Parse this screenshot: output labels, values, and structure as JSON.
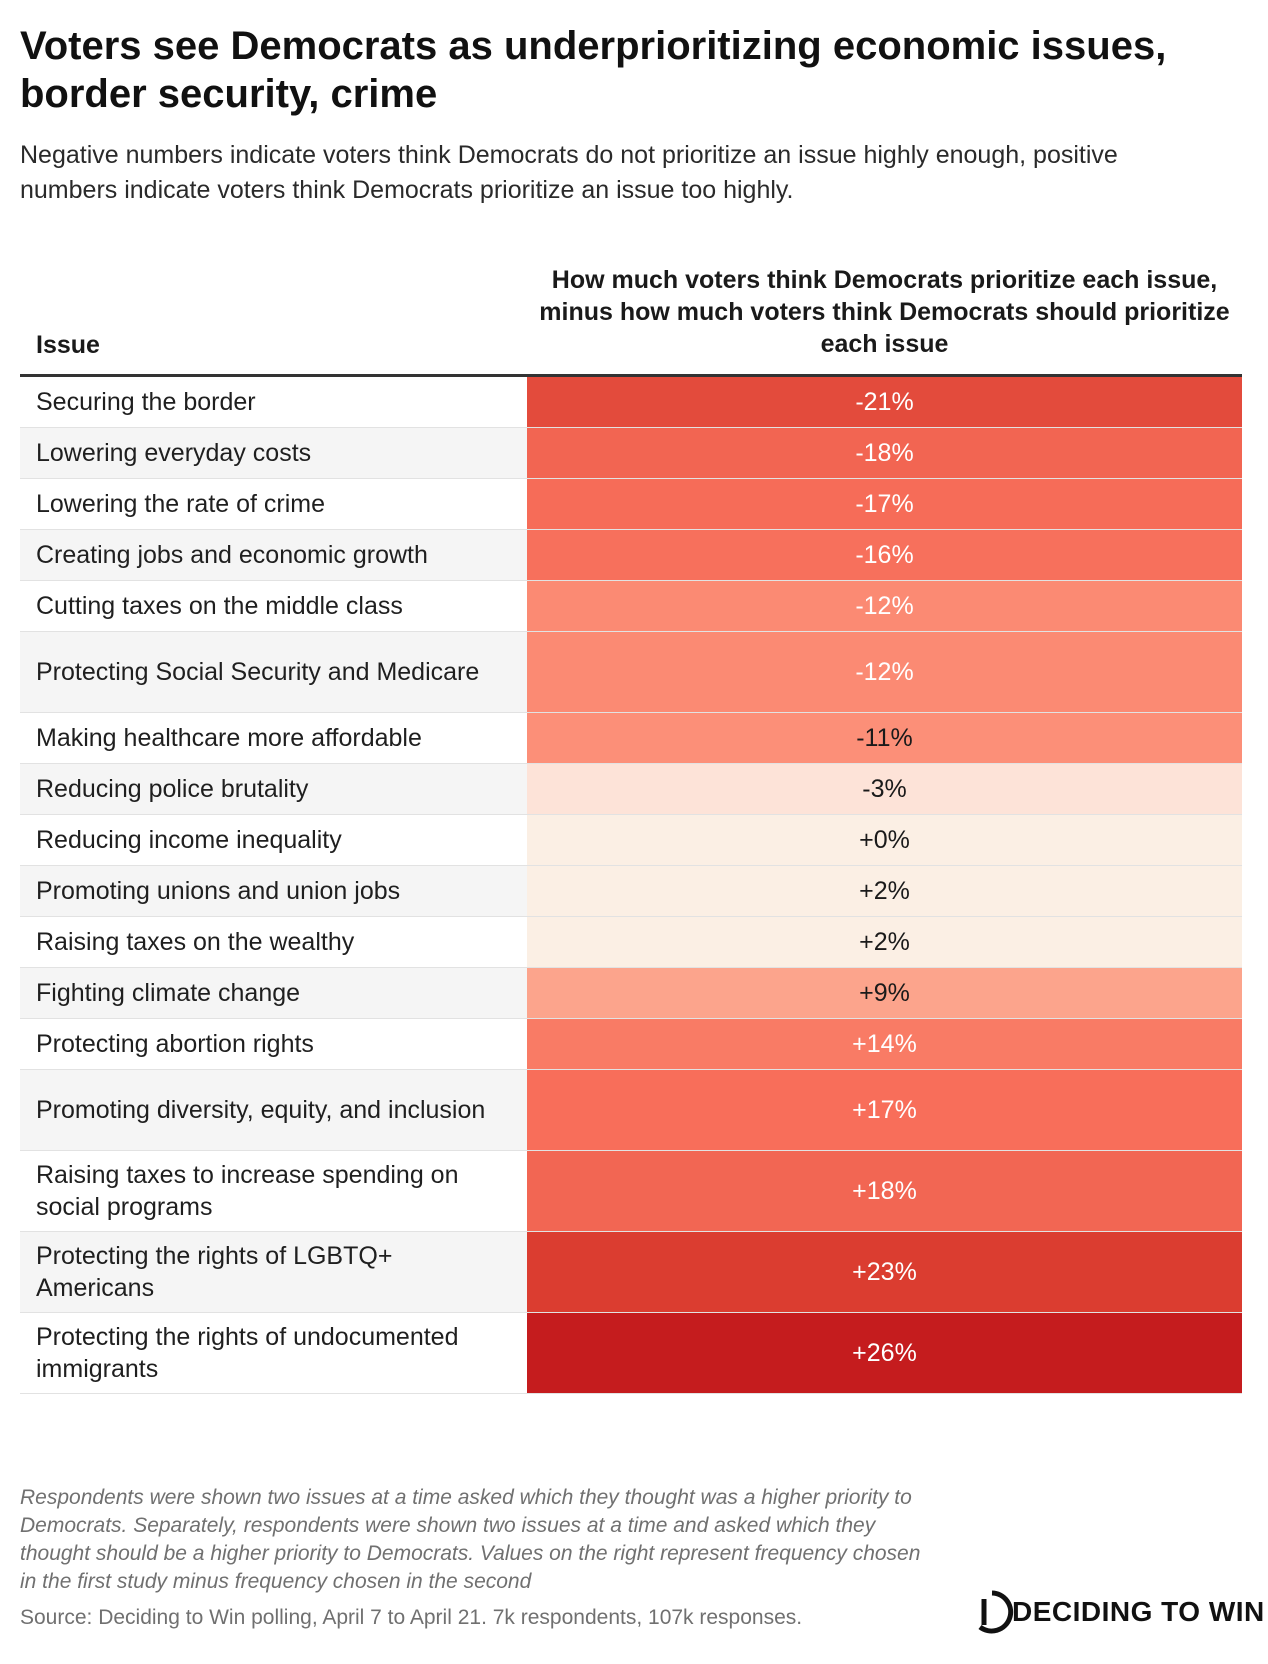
{
  "title": "Voters see Democrats as underprioritizing economic issues, border security, crime",
  "subtitle": "Negative numbers indicate voters think Democrats do not prioritize an issue highly enough, positive numbers indicate voters think Democrats prioritize an issue too highly.",
  "chart_data": {
    "type": "table",
    "columns": [
      "Issue",
      "How much voters think Democrats prioritize each issue, minus how much voters think Democrats should prioritize each issue"
    ],
    "rows": [
      {
        "issue": "Securing the border",
        "value": -21,
        "label": "-21%",
        "color": "#e34b3c",
        "text_color": "#ffffff"
      },
      {
        "issue": "Lowering everyday costs",
        "value": -18,
        "label": "-18%",
        "color": "#f26552",
        "text_color": "#ffffff"
      },
      {
        "issue": "Lowering the rate of crime",
        "value": -17,
        "label": "-17%",
        "color": "#f66c58",
        "text_color": "#ffffff"
      },
      {
        "issue": "Creating jobs and economic growth",
        "value": -16,
        "label": "-16%",
        "color": "#f7705c",
        "text_color": "#ffffff"
      },
      {
        "issue": "Cutting taxes on the middle class",
        "value": -12,
        "label": "-12%",
        "color": "#fb8a73",
        "text_color": "#ffffff"
      },
      {
        "issue": "Protecting Social Security and Medicare",
        "value": -12,
        "label": "-12%",
        "color": "#fb8a73",
        "text_color": "#ffffff"
      },
      {
        "issue": "Making healthcare more affordable",
        "value": -11,
        "label": "-11%",
        "color": "#fc8f78",
        "text_color": "#1a1a1a"
      },
      {
        "issue": "Reducing police brutality",
        "value": -3,
        "label": "-3%",
        "color": "#fde3d8",
        "text_color": "#1a1a1a"
      },
      {
        "issue": "Reducing income inequality",
        "value": 0,
        "label": "+0%",
        "color": "#fbefe4",
        "text_color": "#1a1a1a"
      },
      {
        "issue": "Promoting unions and union jobs",
        "value": 2,
        "label": "+2%",
        "color": "#fbefe4",
        "text_color": "#1a1a1a"
      },
      {
        "issue": "Raising taxes on the wealthy",
        "value": 2,
        "label": "+2%",
        "color": "#fbefe4",
        "text_color": "#1a1a1a"
      },
      {
        "issue": "Fighting climate change",
        "value": 9,
        "label": "+9%",
        "color": "#fca48c",
        "text_color": "#1a1a1a"
      },
      {
        "issue": "Protecting abortion rights",
        "value": 14,
        "label": "+14%",
        "color": "#f97b65",
        "text_color": "#ffffff"
      },
      {
        "issue": "Promoting diversity, equity, and inclusion",
        "value": 17,
        "label": "+17%",
        "color": "#f86e5a",
        "text_color": "#ffffff"
      },
      {
        "issue": "Raising taxes to increase spending on social programs",
        "value": 18,
        "label": "+18%",
        "color": "#f26653",
        "text_color": "#ffffff"
      },
      {
        "issue": "Protecting the rights of LGBTQ+ Americans",
        "value": 23,
        "label": "+23%",
        "color": "#db3d30",
        "text_color": "#ffffff"
      },
      {
        "issue": "Protecting the rights of undocumented immigrants",
        "value": 26,
        "label": "+26%",
        "color": "#c51c1e",
        "text_color": "#ffffff"
      }
    ]
  },
  "footnote": "Respondents were shown two issues at a time asked which they thought was a higher priority to Democrats. Separately, respondents were shown two issues at a time and asked which they thought should be a higher priority to Democrats. Values on the right represent frequency chosen in the first study minus frequency chosen in the second",
  "source": "Source: Deciding to Win polling, April 7 to April 21. 7k respondents, 107k responses.",
  "logo": {
    "text": "DECIDING TO WIN",
    "icon": "d-logo-icon"
  }
}
